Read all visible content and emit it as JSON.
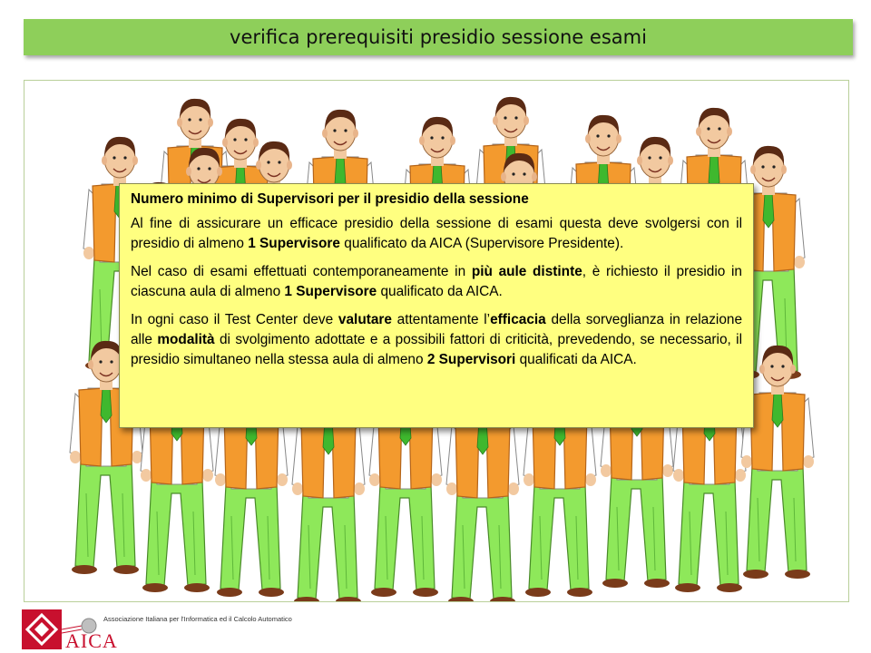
{
  "slide": {
    "title": "verifica prerequisiti presidio sessione esami"
  },
  "info_box": {
    "heading": "Numero minimo di Supervisori per il presidio della sessione",
    "p1_a": "Al fine di assicurare un efficace presidio della sessione di esami questa deve svolgersi con il presidio di almeno ",
    "p1_b": "1 Supervisore",
    "p1_c": " qualificato da AICA (Supervisore Presidente).",
    "p2_a": "Nel caso di esami effettuati contemporaneamente in ",
    "p2_b": "più aule distinte",
    "p2_c": ", è richiesto il presidio in ciascuna aula di almeno ",
    "p2_d": "1 Supervisore",
    "p2_e": " qualificato da AICA.",
    "p3_a": "In ogni caso il Test Center deve ",
    "p3_b": "valutare",
    "p3_c": " attentamente l’",
    "p3_d": "efficacia",
    "p3_e": " della sorveglianza in relazione alle ",
    "p3_f": "modalità",
    "p3_g": " di svolgimento adottate e a possibili fattori di criticità, prevedendo, se necessario, il presidio simultaneo nella stessa aula di almeno ",
    "p3_h": "2 Supervisori",
    "p3_i": " qualificati da AICA."
  },
  "footer": {
    "logo_tagline": "Associazione Italiana per l'Informatica ed il Calcolo Automatico",
    "logo_name": "AICA"
  },
  "colors": {
    "title_bar": "#8ecf5a",
    "info_box": "#ffff80",
    "vest": "#f39a2e",
    "trousers": "#8ee85a",
    "tie": "#3fb82e",
    "logo_red": "#c8102e"
  },
  "icons": {
    "illustration": "crowd-of-supervisors",
    "logo": "aica-logo"
  }
}
